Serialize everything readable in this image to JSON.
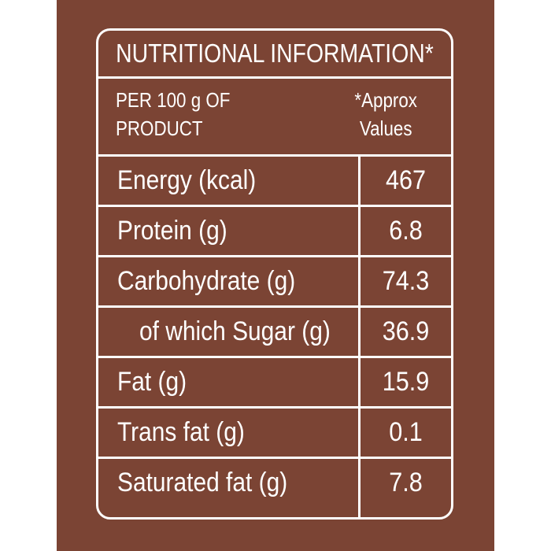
{
  "label": {
    "title": "NUTRITIONAL INFORMATION*",
    "per_text": "PER 100 g OF\nPRODUCT",
    "approx_text": "*Approx\nValues",
    "rows": [
      {
        "name": "Energy (kcal)",
        "value": "467"
      },
      {
        "name": "Protein (g)",
        "value": "6.8"
      },
      {
        "name": "Carbohydrate (g)",
        "value": "74.3"
      },
      {
        "name": "of which Sugar (g)",
        "value": "36.9"
      },
      {
        "name": "Fat (g)",
        "value": "15.9"
      },
      {
        "name": "Trans fat (g)",
        "value": "0.1"
      },
      {
        "name": "Saturated fat (g)",
        "value": "7.8"
      }
    ]
  },
  "colors": {
    "background": "#7b4434",
    "text": "#ffffff"
  }
}
